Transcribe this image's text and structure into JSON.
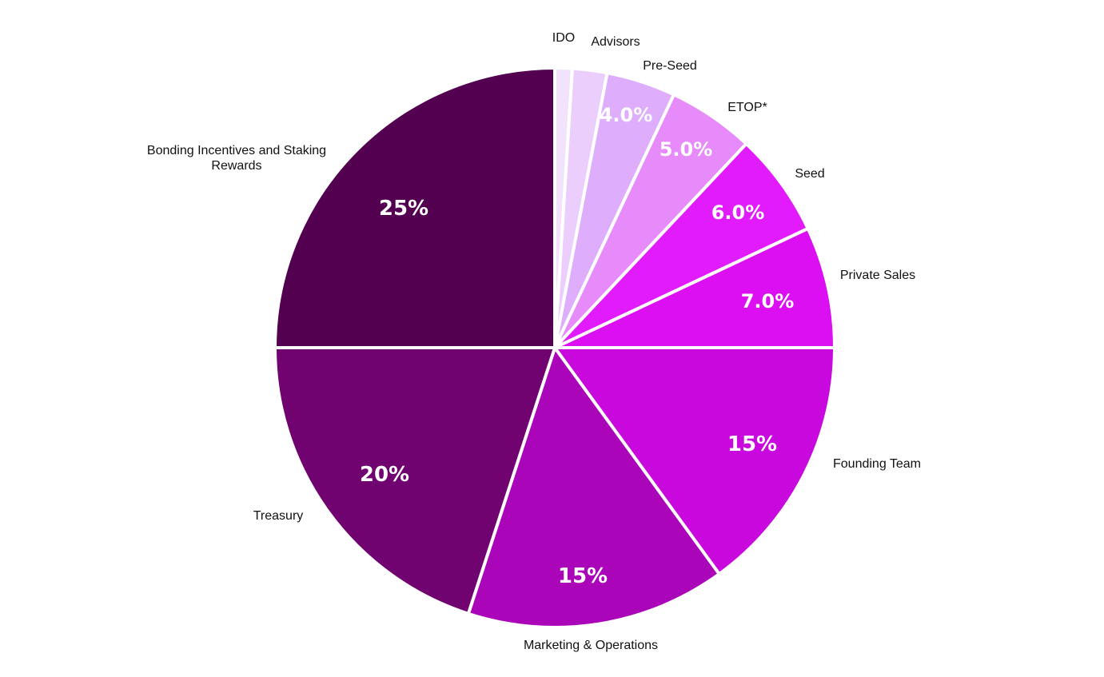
{
  "chart_data": {
    "type": "pie",
    "slices": [
      {
        "label": "IDO",
        "value": 1,
        "value_label": "1%",
        "color": "#f2e2fb",
        "value_label_color": "#5b1a8a"
      },
      {
        "label": "Advisors",
        "value": 2,
        "value_label": "2%",
        "color": "#ebcefb",
        "value_label_color": "#9a4dc0"
      },
      {
        "label": "Pre-Seed",
        "value": 4,
        "value_label": "4.0%",
        "color": "#deadfc",
        "value_label_color": "#ffffff"
      },
      {
        "label": "ETOP*",
        "value": 5,
        "value_label": "5.0%",
        "color": "#e68bf9",
        "value_label_color": "#ffffff"
      },
      {
        "label": "Seed",
        "value": 6,
        "value_label": "6.0%",
        "color": "#e21bfc",
        "value_label_color": "#ffffff"
      },
      {
        "label": "Private Sales",
        "value": 7,
        "value_label": "7.0%",
        "color": "#dc0ef2",
        "value_label_color": "#ffffff"
      },
      {
        "label": "Founding Team",
        "value": 15,
        "value_label": "15%",
        "color": "#c808dc",
        "value_label_color": "#ffffff"
      },
      {
        "label": "Marketing & Operations",
        "value": 15,
        "value_label": "15%",
        "color": "#ab05b9",
        "value_label_color": "#ffffff"
      },
      {
        "label": "Treasury",
        "value": 20,
        "value_label": "20%",
        "color": "#700370",
        "value_label_color": "#ffffff"
      },
      {
        "label": "Bonding Incentives and Staking Rewards",
        "value": 25,
        "value_label": "25%",
        "color": "#530051",
        "value_label_color": "#ffffff"
      }
    ],
    "start_angle_deg": 0,
    "direction": "clockwise"
  }
}
